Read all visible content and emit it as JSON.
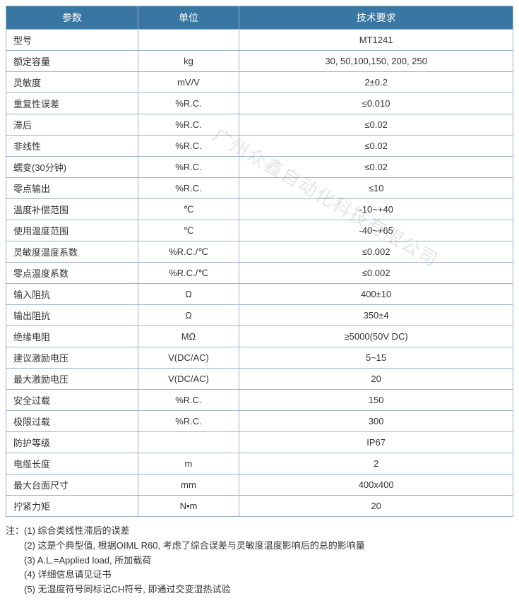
{
  "table": {
    "header_bg": "#3976a1",
    "header_fg": "#ffffff",
    "border_color": "#9bb4c6",
    "cell_bg": "#ffffff",
    "font_size": 13,
    "columns": [
      {
        "label": "参数",
        "width_pct": 26,
        "align": "left"
      },
      {
        "label": "单位",
        "width_pct": 20,
        "align": "center"
      },
      {
        "label": "技术要求",
        "width_pct": 54,
        "align": "center"
      }
    ],
    "rows": [
      {
        "param": "型号",
        "unit": "",
        "req": "MT1241"
      },
      {
        "param": "额定容量",
        "unit": "kg",
        "req": "30, 50,100,150, 200, 250"
      },
      {
        "param": "灵敏度",
        "unit": "mV/V",
        "req": "2±0.2"
      },
      {
        "param": "重复性误差",
        "unit": "%R.C.",
        "req": "≤0.010"
      },
      {
        "param": "滞后",
        "unit": "%R.C.",
        "req": "≤0.02"
      },
      {
        "param": "非线性",
        "unit": "%R.C.",
        "req": "≤0.02"
      },
      {
        "param": "蠕变(30分钟)",
        "unit": "%R.C.",
        "req": "≤0.02"
      },
      {
        "param": "零点输出",
        "unit": "%R.C.",
        "req": "≤10"
      },
      {
        "param": "温度补偿范围",
        "unit": "℃",
        "req": "-10~+40"
      },
      {
        "param": "使用温度范围",
        "unit": "℃",
        "req": "-40~+65"
      },
      {
        "param": "灵敏度温度系数",
        "unit": "%R.C./℃",
        "req": "≤0.002"
      },
      {
        "param": "零点温度系数",
        "unit": "%R.C./℃",
        "req": "≤0.002"
      },
      {
        "param": "输入阻抗",
        "unit": "Ω",
        "req": "400±10"
      },
      {
        "param": "输出阻抗",
        "unit": "Ω",
        "req": "350±4"
      },
      {
        "param": "绝缘电阻",
        "unit": "MΩ",
        "req": "≥5000(50V DC)"
      },
      {
        "param": "建议激励电压",
        "unit": "V(DC/AC)",
        "req": "5~15"
      },
      {
        "param": "最大激励电压",
        "unit": "V(DC/AC)",
        "req": "20"
      },
      {
        "param": "安全过载",
        "unit": "%R.C.",
        "req": "150"
      },
      {
        "param": "极限过载",
        "unit": "%R.C.",
        "req": "300"
      },
      {
        "param": "防护等级",
        "unit": "",
        "req": "IP67"
      },
      {
        "param": "电缆长度",
        "unit": "m",
        "req": "2"
      },
      {
        "param": "最大台面尺寸",
        "unit": "mm",
        "req": "400x400"
      },
      {
        "param": "拧紧力矩",
        "unit": "N•m",
        "req": "20"
      }
    ]
  },
  "notes": {
    "prefix": "注：",
    "items": [
      "(1) 综合类线性滞后的误差",
      "(2) 这是个典型值, 根据OIML R60, 考虑了综合误差与灵敏度温度影响后的总的影响量",
      "(3) A.L.=Applied load, 所加载荷",
      "(4) 详细信息请见证书",
      "(5) 无湿度符号同标记CH符号, 即通过交变湿热试验"
    ]
  },
  "watermark": {
    "text": "广州众鑫自动化科技有限公司",
    "color": "rgba(130,130,130,0.22)",
    "font_size": 26,
    "rotation_deg": 30
  }
}
